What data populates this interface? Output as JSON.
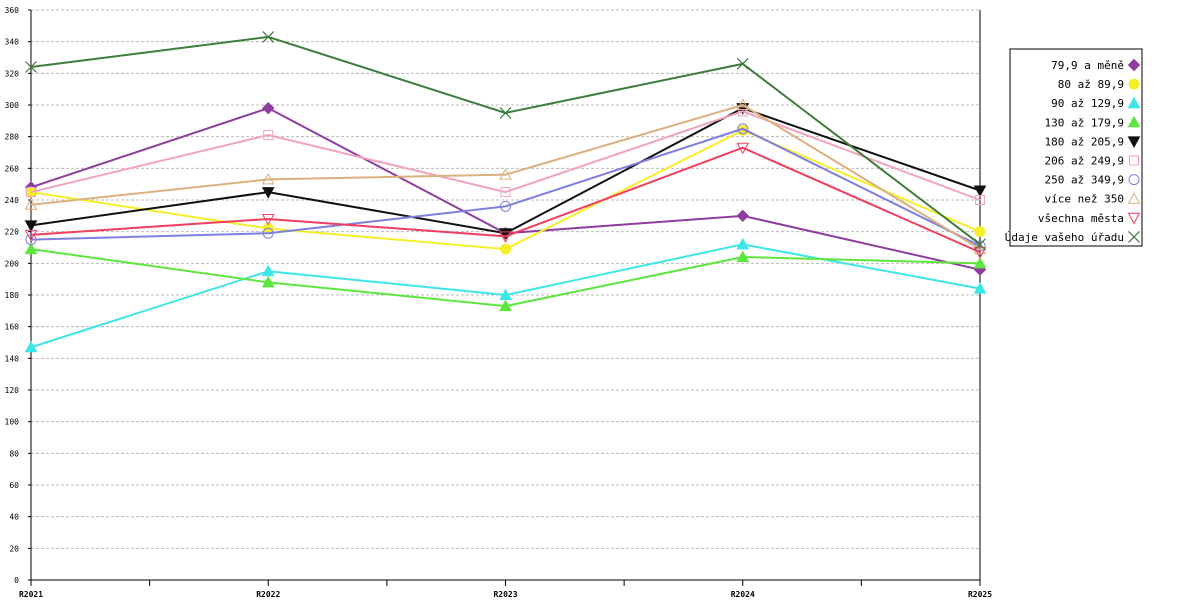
{
  "chart_data": {
    "type": "line",
    "title": "",
    "xlabel": "",
    "ylabel": "",
    "categories": [
      "R2021",
      "R2022",
      "R2023",
      "R2024",
      "R2025"
    ],
    "ylim": [
      0,
      360
    ],
    "yticks": [
      0,
      20,
      40,
      60,
      80,
      100,
      120,
      140,
      160,
      180,
      200,
      220,
      240,
      260,
      280,
      300,
      320,
      340,
      360
    ],
    "grid": true,
    "legend_position": "right",
    "series": [
      {
        "name": "79,9 a měně",
        "values": [
          248,
          298,
          219,
          230,
          196
        ],
        "color": "#8e3c9e",
        "marker": "diamond"
      },
      {
        "name": "80 až 89,9",
        "values": [
          245,
          222,
          209,
          284,
          220
        ],
        "color": "#f5ef2a",
        "marker": "circle-filled"
      },
      {
        "name": "90 až 129,9",
        "values": [
          147,
          195,
          180,
          212,
          184
        ],
        "color": "#3de6e6",
        "marker": "triangle-filled"
      },
      {
        "name": "130 až 179,9",
        "values": [
          209,
          188,
          173,
          204,
          200
        ],
        "color": "#5de63d",
        "marker": "triangle-filled"
      },
      {
        "name": "180 až 205,9",
        "values": [
          224,
          245,
          219,
          298,
          246
        ],
        "color": "#111111",
        "marker": "triangle-down-filled"
      },
      {
        "name": "206 až 249,9",
        "values": [
          245,
          281,
          245,
          296,
          240
        ],
        "color": "#f2a2bf",
        "marker": "square-open"
      },
      {
        "name": "250 až 349,9",
        "values": [
          215,
          219,
          236,
          285,
          211
        ],
        "color": "#7f7fdf",
        "marker": "circle-open"
      },
      {
        "name": "více než 350",
        "values": [
          237,
          253,
          256,
          300,
          209
        ],
        "color": "#dbb07f",
        "marker": "triangle-open"
      },
      {
        "name": "všechna města",
        "values": [
          218,
          228,
          217,
          273,
          207
        ],
        "color": "#ef3e5e",
        "marker": "triangle-down-open"
      },
      {
        "name": "Údaje vašeho úřadu",
        "values": [
          324,
          343,
          295,
          326,
          212
        ],
        "color": "#3e7d3e",
        "marker": "x"
      }
    ]
  }
}
